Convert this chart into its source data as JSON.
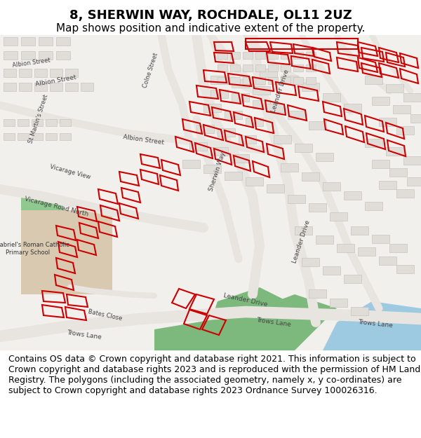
{
  "title": "8, SHERWIN WAY, ROCHDALE, OL11 2UZ",
  "subtitle": "Map shows position and indicative extent of the property.",
  "footer": "Contains OS data © Crown copyright and database right 2021. This information is subject to Crown copyright and database rights 2023 and is reproduced with the permission of HM Land Registry. The polygons (including the associated geometry, namely x, y co-ordinates) are subject to Crown copyright and database rights 2023 Ordnance Survey 100026316.",
  "title_fontsize": 13,
  "subtitle_fontsize": 11,
  "footer_fontsize": 9,
  "bg_color": "#ffffff",
  "map_bg": "#f0eeeb",
  "title_color": "#000000",
  "footer_color": "#000000",
  "fig_width": 6.0,
  "fig_height": 6.25,
  "dpi": 100
}
